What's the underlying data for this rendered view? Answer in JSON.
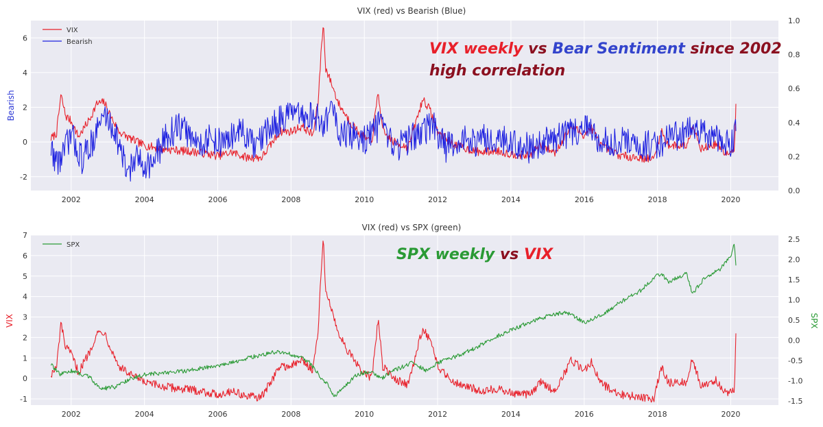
{
  "chart_data": [
    {
      "type": "line",
      "title": "VIX (red) vs Bearish (Blue)",
      "xlabel": "",
      "ylabel": "Bearish",
      "ylabel_color": "#2f3bd6",
      "y2label": "",
      "xlim": [
        2000.9,
        2021.3
      ],
      "ylim": [
        -2.8,
        7.0
      ],
      "y2lim": [
        0.0,
        1.0
      ],
      "xticks": [
        "2002",
        "2004",
        "2006",
        "2008",
        "2010",
        "2012",
        "2014",
        "2016",
        "2018",
        "2020"
      ],
      "yticks": [
        "-2",
        "0",
        "2",
        "4",
        "6"
      ],
      "y2ticks": [
        "0.0",
        "0.2",
        "0.4",
        "0.6",
        "0.8",
        "1.0"
      ],
      "legend_position": "top-left",
      "series": [
        {
          "name": "VIX",
          "color": "#e8202a",
          "axis": "left",
          "keypoints": [
            [
              2001.45,
              0.2
            ],
            [
              2001.6,
              0.5
            ],
            [
              2001.72,
              2.7
            ],
            [
              2001.85,
              1.5
            ],
            [
              2002.0,
              1.2
            ],
            [
              2002.2,
              0.3
            ],
            [
              2002.5,
              1.3
            ],
            [
              2002.7,
              2.2
            ],
            [
              2002.9,
              2.3
            ],
            [
              2003.1,
              1.4
            ],
            [
              2003.3,
              0.6
            ],
            [
              2003.6,
              0.2
            ],
            [
              2004.0,
              -0.2
            ],
            [
              2004.5,
              -0.4
            ],
            [
              2005.0,
              -0.5
            ],
            [
              2005.5,
              -0.6
            ],
            [
              2006.0,
              -0.8
            ],
            [
              2006.4,
              -0.6
            ],
            [
              2006.8,
              -0.9
            ],
            [
              2007.2,
              -0.9
            ],
            [
              2007.5,
              0.0
            ],
            [
              2007.7,
              0.6
            ],
            [
              2008.0,
              0.6
            ],
            [
              2008.3,
              0.9
            ],
            [
              2008.6,
              0.4
            ],
            [
              2008.75,
              2.5
            ],
            [
              2008.82,
              5.3
            ],
            [
              2008.88,
              6.8
            ],
            [
              2008.95,
              4.2
            ],
            [
              2009.1,
              3.4
            ],
            [
              2009.3,
              2.2
            ],
            [
              2009.6,
              1.2
            ],
            [
              2009.9,
              0.4
            ],
            [
              2010.2,
              0.0
            ],
            [
              2010.38,
              2.9
            ],
            [
              2010.5,
              0.6
            ],
            [
              2010.8,
              0.0
            ],
            [
              2011.2,
              -0.3
            ],
            [
              2011.6,
              2.5
            ],
            [
              2011.8,
              1.8
            ],
            [
              2012.0,
              0.6
            ],
            [
              2012.4,
              -0.1
            ],
            [
              2012.8,
              -0.4
            ],
            [
              2013.2,
              -0.6
            ],
            [
              2013.6,
              -0.5
            ],
            [
              2014.0,
              -0.7
            ],
            [
              2014.5,
              -0.8
            ],
            [
              2014.8,
              -0.2
            ],
            [
              2015.2,
              -0.6
            ],
            [
              2015.65,
              0.9
            ],
            [
              2016.0,
              0.4
            ],
            [
              2016.2,
              0.8
            ],
            [
              2016.5,
              -0.3
            ],
            [
              2017.0,
              -0.8
            ],
            [
              2017.5,
              -0.9
            ],
            [
              2017.9,
              -1.0
            ],
            [
              2018.1,
              0.6
            ],
            [
              2018.3,
              -0.2
            ],
            [
              2018.8,
              -0.2
            ],
            [
              2018.95,
              1.0
            ],
            [
              2019.2,
              -0.4
            ],
            [
              2019.6,
              -0.1
            ],
            [
              2019.9,
              -0.7
            ],
            [
              2020.1,
              -0.6
            ],
            [
              2020.14,
              2.2
            ]
          ]
        },
        {
          "name": "Bearish",
          "color": "#1f22e0",
          "axis": "right",
          "keypoints": [
            [
              2001.45,
              0.25
            ],
            [
              2001.6,
              0.17
            ],
            [
              2001.75,
              0.2
            ],
            [
              2002.0,
              0.33
            ],
            [
              2002.3,
              0.18
            ],
            [
              2002.6,
              0.3
            ],
            [
              2002.9,
              0.45
            ],
            [
              2003.2,
              0.35
            ],
            [
              2003.5,
              0.12
            ],
            [
              2003.8,
              0.18
            ],
            [
              2004.2,
              0.15
            ],
            [
              2004.6,
              0.32
            ],
            [
              2005.0,
              0.38
            ],
            [
              2005.4,
              0.28
            ],
            [
              2005.8,
              0.3
            ],
            [
              2006.2,
              0.28
            ],
            [
              2006.6,
              0.36
            ],
            [
              2007.0,
              0.25
            ],
            [
              2007.3,
              0.33
            ],
            [
              2007.7,
              0.42
            ],
            [
              2008.0,
              0.45
            ],
            [
              2008.3,
              0.42
            ],
            [
              2008.6,
              0.45
            ],
            [
              2008.9,
              0.38
            ],
            [
              2009.1,
              0.5
            ],
            [
              2009.3,
              0.35
            ],
            [
              2009.6,
              0.32
            ],
            [
              2010.0,
              0.3
            ],
            [
              2010.4,
              0.38
            ],
            [
              2010.8,
              0.25
            ],
            [
              2011.2,
              0.3
            ],
            [
              2011.6,
              0.35
            ],
            [
              2011.9,
              0.38
            ],
            [
              2012.2,
              0.25
            ],
            [
              2012.6,
              0.3
            ],
            [
              2013.0,
              0.28
            ],
            [
              2013.5,
              0.32
            ],
            [
              2014.0,
              0.28
            ],
            [
              2014.5,
              0.25
            ],
            [
              2015.0,
              0.3
            ],
            [
              2015.5,
              0.32
            ],
            [
              2016.0,
              0.38
            ],
            [
              2016.5,
              0.28
            ],
            [
              2017.0,
              0.3
            ],
            [
              2017.5,
              0.25
            ],
            [
              2018.0,
              0.28
            ],
            [
              2018.5,
              0.32
            ],
            [
              2019.0,
              0.35
            ],
            [
              2019.5,
              0.3
            ],
            [
              2020.0,
              0.28
            ],
            [
              2020.14,
              0.35
            ]
          ]
        }
      ],
      "annotation": [
        {
          "text": "VIX weekly",
          "color": "#e8202a"
        },
        {
          "text": " vs ",
          "color": "#8b1020"
        },
        {
          "text": "Bear Sentiment",
          "color": "#3344cc"
        },
        {
          "text": " since 2002",
          "color": "#8b1020"
        }
      ],
      "annotation_line2": {
        "text": "high correlation",
        "color": "#8b1020"
      }
    },
    {
      "type": "line",
      "title": "VIX (red) vs SPX (green)",
      "xlabel": "",
      "ylabel": "VIX",
      "ylabel_color": "#e8202a",
      "y2label": "SPX",
      "y2label_color": "#2a9a35",
      "xlim": [
        2000.9,
        2021.3
      ],
      "ylim": [
        -1.3,
        7.0
      ],
      "y2lim": [
        -1.6,
        2.6
      ],
      "xticks": [
        "2002",
        "2004",
        "2006",
        "2008",
        "2010",
        "2012",
        "2014",
        "2016",
        "2018",
        "2020"
      ],
      "yticks": [
        "-1",
        "0",
        "1",
        "2",
        "3",
        "4",
        "5",
        "6",
        "7"
      ],
      "y2ticks": [
        "-1.5",
        "-1.0",
        "-0.5",
        "0.0",
        "0.5",
        "1.0",
        "1.5",
        "2.0",
        "2.5"
      ],
      "legend_position": "top-left",
      "legend_label": "SPX",
      "series": [
        {
          "name": "VIX",
          "color": "#e8202a",
          "axis": "left",
          "keypoints": [
            [
              2001.45,
              0.2
            ],
            [
              2001.6,
              0.5
            ],
            [
              2001.72,
              2.7
            ],
            [
              2001.85,
              1.5
            ],
            [
              2002.0,
              1.2
            ],
            [
              2002.2,
              0.3
            ],
            [
              2002.5,
              1.3
            ],
            [
              2002.7,
              2.2
            ],
            [
              2002.9,
              2.3
            ],
            [
              2003.1,
              1.4
            ],
            [
              2003.3,
              0.6
            ],
            [
              2003.6,
              0.2
            ],
            [
              2004.0,
              -0.2
            ],
            [
              2004.5,
              -0.4
            ],
            [
              2005.0,
              -0.5
            ],
            [
              2005.5,
              -0.6
            ],
            [
              2006.0,
              -0.8
            ],
            [
              2006.4,
              -0.6
            ],
            [
              2006.8,
              -0.9
            ],
            [
              2007.2,
              -0.9
            ],
            [
              2007.5,
              0.0
            ],
            [
              2007.7,
              0.6
            ],
            [
              2008.0,
              0.6
            ],
            [
              2008.3,
              0.9
            ],
            [
              2008.6,
              0.4
            ],
            [
              2008.75,
              2.5
            ],
            [
              2008.82,
              5.3
            ],
            [
              2008.88,
              6.8
            ],
            [
              2008.95,
              4.2
            ],
            [
              2009.1,
              3.4
            ],
            [
              2009.3,
              2.2
            ],
            [
              2009.6,
              1.2
            ],
            [
              2009.9,
              0.4
            ],
            [
              2010.2,
              0.0
            ],
            [
              2010.38,
              2.9
            ],
            [
              2010.5,
              0.6
            ],
            [
              2010.8,
              0.0
            ],
            [
              2011.2,
              -0.3
            ],
            [
              2011.6,
              2.5
            ],
            [
              2011.8,
              1.8
            ],
            [
              2012.0,
              0.6
            ],
            [
              2012.4,
              -0.1
            ],
            [
              2012.8,
              -0.4
            ],
            [
              2013.2,
              -0.6
            ],
            [
              2013.6,
              -0.5
            ],
            [
              2014.0,
              -0.7
            ],
            [
              2014.5,
              -0.8
            ],
            [
              2014.8,
              -0.2
            ],
            [
              2015.2,
              -0.6
            ],
            [
              2015.65,
              0.9
            ],
            [
              2016.0,
              0.4
            ],
            [
              2016.2,
              0.8
            ],
            [
              2016.5,
              -0.3
            ],
            [
              2017.0,
              -0.8
            ],
            [
              2017.5,
              -0.9
            ],
            [
              2017.9,
              -1.0
            ],
            [
              2018.1,
              0.6
            ],
            [
              2018.3,
              -0.2
            ],
            [
              2018.8,
              -0.2
            ],
            [
              2018.95,
              1.0
            ],
            [
              2019.2,
              -0.4
            ],
            [
              2019.6,
              -0.1
            ],
            [
              2019.9,
              -0.7
            ],
            [
              2020.1,
              -0.6
            ],
            [
              2020.14,
              2.2
            ]
          ]
        },
        {
          "name": "SPX",
          "color": "#2a9a35",
          "axis": "right",
          "keypoints": [
            [
              2001.45,
              -0.6
            ],
            [
              2001.7,
              -0.85
            ],
            [
              2002.0,
              -0.75
            ],
            [
              2002.5,
              -0.9
            ],
            [
              2002.8,
              -1.2
            ],
            [
              2003.2,
              -1.15
            ],
            [
              2003.6,
              -0.95
            ],
            [
              2004.0,
              -0.85
            ],
            [
              2004.6,
              -0.8
            ],
            [
              2005.2,
              -0.75
            ],
            [
              2005.8,
              -0.65
            ],
            [
              2006.4,
              -0.55
            ],
            [
              2007.0,
              -0.4
            ],
            [
              2007.5,
              -0.3
            ],
            [
              2007.8,
              -0.3
            ],
            [
              2008.2,
              -0.4
            ],
            [
              2008.5,
              -0.55
            ],
            [
              2008.8,
              -0.9
            ],
            [
              2009.0,
              -1.1
            ],
            [
              2009.18,
              -1.4
            ],
            [
              2009.5,
              -1.1
            ],
            [
              2009.8,
              -0.85
            ],
            [
              2010.2,
              -0.75
            ],
            [
              2010.45,
              -0.95
            ],
            [
              2010.8,
              -0.75
            ],
            [
              2011.3,
              -0.55
            ],
            [
              2011.7,
              -0.75
            ],
            [
              2012.0,
              -0.55
            ],
            [
              2012.5,
              -0.4
            ],
            [
              2013.0,
              -0.2
            ],
            [
              2013.5,
              0.05
            ],
            [
              2014.0,
              0.25
            ],
            [
              2014.5,
              0.45
            ],
            [
              2015.0,
              0.6
            ],
            [
              2015.5,
              0.7
            ],
            [
              2016.0,
              0.45
            ],
            [
              2016.2,
              0.5
            ],
            [
              2016.6,
              0.7
            ],
            [
              2017.0,
              0.95
            ],
            [
              2017.5,
              1.2
            ],
            [
              2017.9,
              1.55
            ],
            [
              2018.1,
              1.65
            ],
            [
              2018.3,
              1.45
            ],
            [
              2018.8,
              1.65
            ],
            [
              2018.95,
              1.15
            ],
            [
              2019.3,
              1.55
            ],
            [
              2019.7,
              1.75
            ],
            [
              2020.0,
              2.1
            ],
            [
              2020.1,
              2.4
            ],
            [
              2020.14,
              1.85
            ]
          ]
        }
      ],
      "annotation": [
        {
          "text": "SPX weekly",
          "color": "#2a9a35"
        },
        {
          "text": " vs ",
          "color": "#8b1020"
        },
        {
          "text": "VIX",
          "color": "#e8202a"
        }
      ]
    }
  ]
}
